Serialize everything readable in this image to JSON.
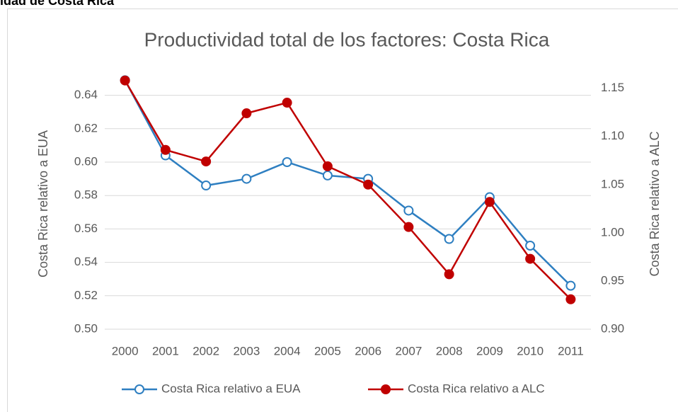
{
  "header": "idad de Costa Rica",
  "chart_data": {
    "type": "line",
    "title": "Productividad total de los factores: Costa Rica",
    "ylabel": "Costa Rica relativo a EUA",
    "y2label": "Costa Rica relativo a ALC",
    "categories": [
      "2000",
      "2001",
      "2002",
      "2003",
      "2004",
      "2005",
      "2006",
      "2007",
      "2008",
      "2009",
      "2010",
      "2011"
    ],
    "series": [
      {
        "name": "Costa Rica relativo a EUA",
        "color": "#2e7fc1",
        "marker": "open",
        "values": [
          0.649,
          0.604,
          0.586,
          0.59,
          0.6,
          0.592,
          0.59,
          0.571,
          0.554,
          0.579,
          0.55,
          0.526
        ]
      },
      {
        "name": "Costa Rica relativo a ALC",
        "color": "#c00000",
        "marker": "filled",
        "axis": "y2",
        "values": [
          1.158,
          1.086,
          1.074,
          1.124,
          1.135,
          1.069,
          1.05,
          1.006,
          0.957,
          1.032,
          0.973,
          0.931
        ]
      }
    ],
    "ylim": [
      0.5,
      0.65
    ],
    "yticks": [
      {
        "value": 0.5,
        "label": "0.50"
      },
      {
        "value": 0.52,
        "label": "0.52"
      },
      {
        "value": 0.54,
        "label": "0.54"
      },
      {
        "value": 0.56,
        "label": "0.56"
      },
      {
        "value": 0.58,
        "label": "0.58"
      },
      {
        "value": 0.6,
        "label": "0.60"
      },
      {
        "value": 0.62,
        "label": "0.62"
      },
      {
        "value": 0.64,
        "label": "0.64"
      }
    ],
    "y2lim": [
      0.9,
      1.16
    ],
    "y2ticks": [
      {
        "value": 0.9,
        "label": "0.90"
      },
      {
        "value": 0.95,
        "label": "0.95"
      },
      {
        "value": 1.0,
        "label": "1.00"
      },
      {
        "value": 1.05,
        "label": "1.05"
      },
      {
        "value": 1.1,
        "label": "1.10"
      },
      {
        "value": 1.15,
        "label": "1.15"
      }
    ],
    "grid": true,
    "legend": "bottom"
  }
}
